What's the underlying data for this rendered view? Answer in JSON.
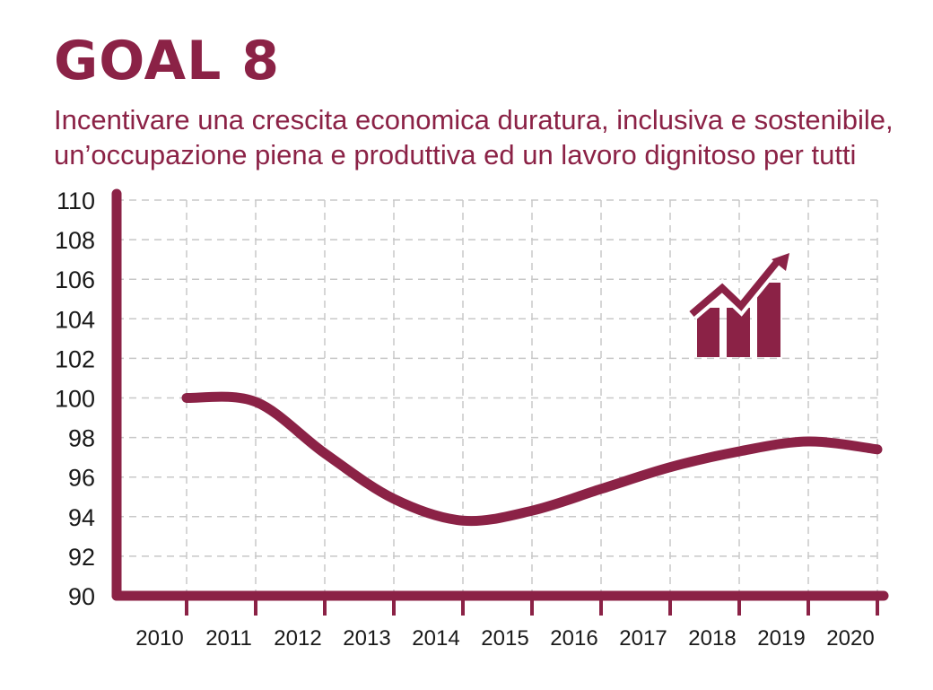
{
  "title": "GOAL 8",
  "subtitle": "Incentivare una crescita economica duratura, inclusiva e sostenibile, un’occupazione piena e produttiva ed un lavoro dignitoso per tutti",
  "colors": {
    "accent": "#8B2246",
    "grid": "#c8c8c8",
    "text": "#1a1a1a"
  },
  "icon": "growth-bar-chart-arrow-icon",
  "chart_data": {
    "type": "line",
    "x": [
      "2010",
      "2011",
      "2012",
      "2013",
      "2014",
      "2015",
      "2016",
      "2017",
      "2018",
      "2019",
      "2020"
    ],
    "series": [
      {
        "values": [
          100.0,
          99.8,
          97.2,
          94.9,
          93.8,
          94.3,
          95.4,
          96.5,
          97.3,
          97.8,
          97.4
        ]
      }
    ],
    "y_ticks": [
      90,
      92,
      94,
      96,
      98,
      100,
      102,
      104,
      106,
      108,
      110
    ],
    "ylim": [
      90,
      110
    ],
    "grid": true,
    "grid_style": "dashed",
    "xlabel": "",
    "ylabel": ""
  }
}
